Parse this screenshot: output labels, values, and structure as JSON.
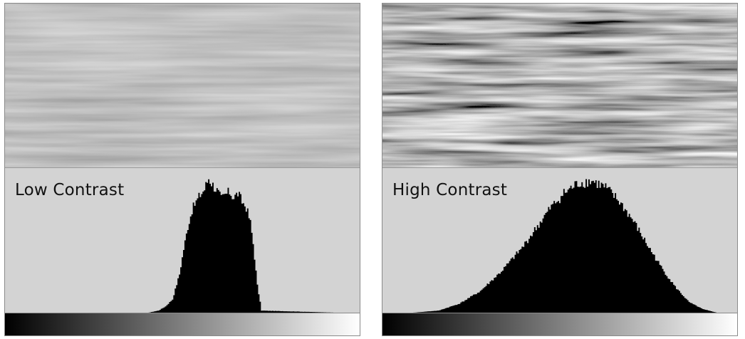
{
  "chart_data": [
    {
      "type": "area",
      "title": "Low Contrast",
      "xlim": [
        0,
        255
      ],
      "ylim": [
        0,
        1
      ],
      "grid": false,
      "x": [
        0,
        100,
        110,
        115,
        120,
        125,
        128,
        131,
        134,
        137,
        140,
        143,
        146,
        149,
        152,
        155,
        158,
        161,
        164,
        167,
        170,
        173,
        176,
        178,
        181,
        184,
        255
      ],
      "values": [
        0,
        0,
        0.02,
        0.05,
        0.1,
        0.28,
        0.46,
        0.62,
        0.74,
        0.8,
        0.85,
        0.89,
        0.97,
        0.92,
        0.88,
        0.82,
        0.85,
        0.87,
        0.83,
        0.86,
        0.8,
        0.76,
        0.65,
        0.5,
        0.2,
        0.02,
        0
      ]
    },
    {
      "type": "area",
      "title": "High Contrast",
      "xlim": [
        0,
        255
      ],
      "ylim": [
        0,
        1
      ],
      "grid": false,
      "x": [
        0,
        15,
        40,
        55,
        70,
        85,
        100,
        110,
        120,
        130,
        140,
        150,
        160,
        170,
        180,
        190,
        200,
        210,
        220,
        230,
        240,
        255
      ],
      "values": [
        0,
        0,
        0.02,
        0.07,
        0.16,
        0.3,
        0.47,
        0.61,
        0.75,
        0.86,
        0.93,
        0.95,
        0.9,
        0.8,
        0.66,
        0.49,
        0.33,
        0.19,
        0.08,
        0.03,
        0.005,
        0
      ]
    }
  ],
  "icons": {
    "left_image": "low-contrast-water-photo",
    "right_image": "high-contrast-water-photo",
    "colors": {
      "histogram": "#000000",
      "background": "#d3d3d3",
      "gradient_start": "#000000",
      "gradient_end": "#ffffff"
    }
  }
}
